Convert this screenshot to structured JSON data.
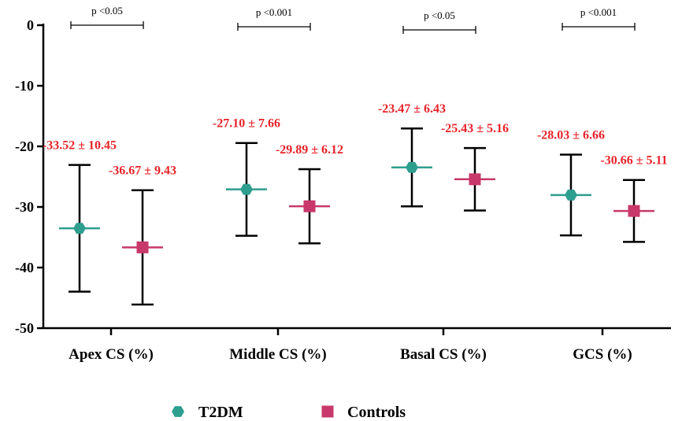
{
  "chart_data": {
    "type": "scatter",
    "categories": [
      "Apex CS (%)",
      "Middle CS (%)",
      "Basal CS (%)",
      "GCS (%)"
    ],
    "ylim": [
      -50,
      0
    ],
    "yticks": [
      0,
      -10,
      -20,
      -30,
      -40,
      -50
    ],
    "ytick_labels": [
      "0",
      "-10",
      "-20",
      "-30",
      "-40",
      "-50"
    ],
    "grid": false,
    "legend_position": "bottom",
    "series": [
      {
        "name": "T2DM",
        "color": "#2e9e8f",
        "marker": "hexagon",
        "mean": [
          -33.52,
          -27.1,
          -23.47,
          -28.03
        ],
        "sd": [
          10.45,
          7.66,
          6.43,
          6.66
        ],
        "labels": [
          "-33.52 ± 10.45",
          "-27.10 ± 7.66",
          "-23.47 ± 6.43",
          "-28.03 ± 6.66"
        ]
      },
      {
        "name": "Controls",
        "color": "#c8386a",
        "marker": "square",
        "mean": [
          -36.67,
          -29.89,
          -25.43,
          -30.66
        ],
        "sd": [
          9.43,
          6.12,
          5.16,
          5.11
        ],
        "labels": [
          "-36.67 ± 9.43",
          "-29.89 ± 6.12",
          "-25.43 ± 5.16",
          "-30.66 ± 5.11"
        ]
      }
    ],
    "label_color": "#e8232a",
    "p_values": [
      "p <0.05",
      "p <0.001",
      "p <0.05",
      "p <0.001"
    ]
  }
}
